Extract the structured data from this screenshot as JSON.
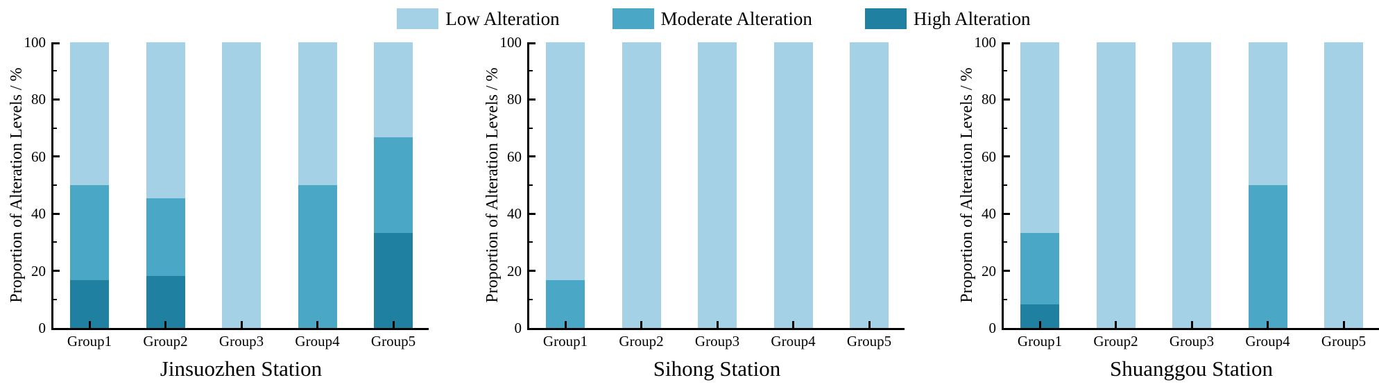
{
  "colors": {
    "low": "#a4d1e6",
    "moderate": "#4ba7c6",
    "high": "#1f80a1",
    "axis": "#000000",
    "background": "#ffffff"
  },
  "legend": {
    "items": [
      {
        "key": "low",
        "label": "Low Alteration"
      },
      {
        "key": "moderate",
        "label": "Moderate Alteration"
      },
      {
        "key": "high",
        "label": "High Alteration"
      }
    ]
  },
  "y_axis": {
    "label": "Proportion of  Alteration Levels / %",
    "min": 0,
    "max": 100,
    "major_ticks": [
      0,
      20,
      40,
      60,
      80,
      100
    ],
    "minor_ticks": [
      10,
      30,
      50,
      70,
      90
    ]
  },
  "chart_data": [
    {
      "type": "bar",
      "stacked": true,
      "title": "Jinsuozhen Station",
      "xlabel": "Jinsuozhen Station",
      "ylabel": "Proportion of  Alteration Levels / %",
      "ylim": [
        0,
        100
      ],
      "grid": false,
      "legend_position": "top-center",
      "categories": [
        "Group1",
        "Group2",
        "Group3",
        "Group4",
        "Group5"
      ],
      "series": [
        {
          "name": "High Alteration",
          "key": "high",
          "values": [
            16.7,
            18.2,
            0,
            0,
            33.3
          ]
        },
        {
          "name": "Moderate Alteration",
          "key": "moderate",
          "values": [
            33.3,
            27.3,
            0,
            50,
            33.4
          ]
        },
        {
          "name": "Low Alteration",
          "key": "low",
          "values": [
            50,
            54.5,
            100,
            50,
            33.3
          ]
        }
      ]
    },
    {
      "type": "bar",
      "stacked": true,
      "title": "Sihong Station",
      "xlabel": "Sihong Station",
      "ylabel": "Proportion of  Alteration Levels / %",
      "ylim": [
        0,
        100
      ],
      "grid": false,
      "legend_position": "top-center",
      "categories": [
        "Group1",
        "Group2",
        "Group3",
        "Group4",
        "Group5"
      ],
      "series": [
        {
          "name": "High Alteration",
          "key": "high",
          "values": [
            0,
            0,
            0,
            0,
            0
          ]
        },
        {
          "name": "Moderate Alteration",
          "key": "moderate",
          "values": [
            16.7,
            0,
            0,
            0,
            0
          ]
        },
        {
          "name": "Low Alteration",
          "key": "low",
          "values": [
            83.3,
            100,
            100,
            100,
            100
          ]
        }
      ]
    },
    {
      "type": "bar",
      "stacked": true,
      "title": "Shuanggou Station",
      "xlabel": "Shuanggou Station",
      "ylabel": "Proportion of  Alteration Levels / %",
      "ylim": [
        0,
        100
      ],
      "grid": false,
      "legend_position": "top-center",
      "categories": [
        "Group1",
        "Group2",
        "Group3",
        "Group4",
        "Group5"
      ],
      "series": [
        {
          "name": "High Alteration",
          "key": "high",
          "values": [
            8.3,
            0,
            0,
            0,
            0
          ]
        },
        {
          "name": "Moderate Alteration",
          "key": "moderate",
          "values": [
            25,
            0,
            0,
            50,
            0
          ]
        },
        {
          "name": "Low Alteration",
          "key": "low",
          "values": [
            66.7,
            100,
            100,
            50,
            100
          ]
        }
      ]
    }
  ]
}
